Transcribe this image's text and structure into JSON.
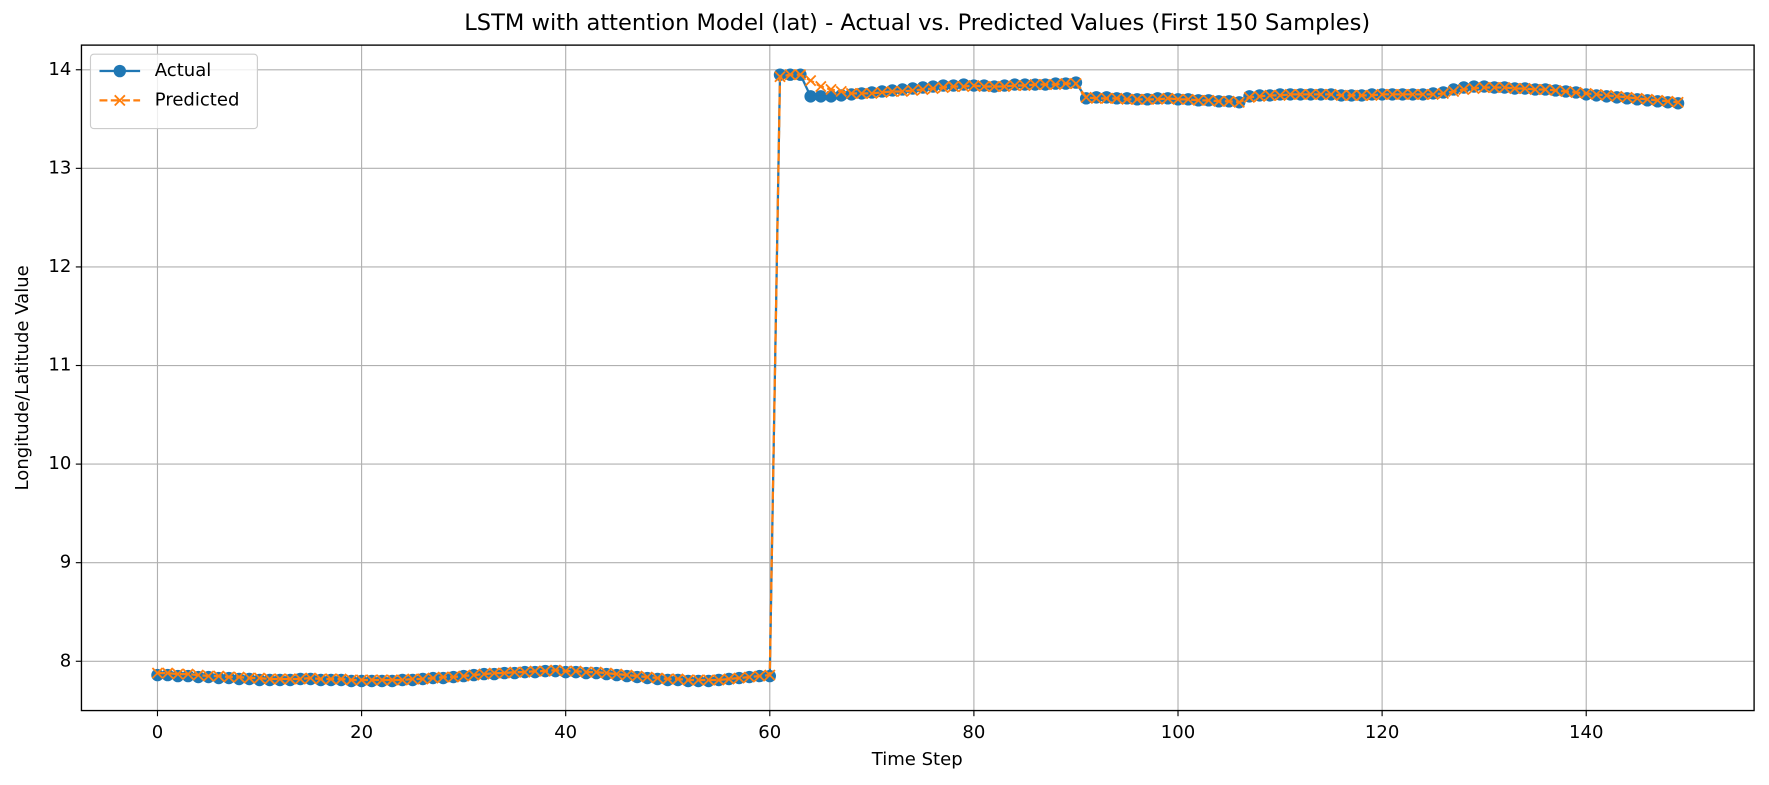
{
  "chart_data": {
    "type": "line",
    "title": "LSTM with attention Model (lat) - Actual vs. Predicted Values (First 150 Samples)",
    "x_label": "Time Step",
    "y_label": "Longitude/Latitude Value",
    "x": [
      0,
      1,
      2,
      3,
      4,
      5,
      6,
      7,
      8,
      9,
      10,
      11,
      12,
      13,
      14,
      15,
      16,
      17,
      18,
      19,
      20,
      21,
      22,
      23,
      24,
      25,
      26,
      27,
      28,
      29,
      30,
      31,
      32,
      33,
      34,
      35,
      36,
      37,
      38,
      39,
      40,
      41,
      42,
      43,
      44,
      45,
      46,
      47,
      48,
      49,
      50,
      51,
      52,
      53,
      54,
      55,
      56,
      57,
      58,
      59,
      60,
      61,
      62,
      63,
      64,
      65,
      66,
      67,
      68,
      69,
      70,
      71,
      72,
      73,
      74,
      75,
      76,
      77,
      78,
      79,
      80,
      81,
      82,
      83,
      84,
      85,
      86,
      87,
      88,
      89,
      90,
      91,
      92,
      93,
      94,
      95,
      96,
      97,
      98,
      99,
      100,
      101,
      102,
      103,
      104,
      105,
      106,
      107,
      108,
      109,
      110,
      111,
      112,
      113,
      114,
      115,
      116,
      117,
      118,
      119,
      120,
      121,
      122,
      123,
      124,
      125,
      126,
      127,
      128,
      129,
      130,
      131,
      132,
      133,
      134,
      135,
      136,
      137,
      138,
      139,
      140,
      141,
      142,
      143,
      144,
      145,
      146,
      147,
      148,
      149
    ],
    "series": [
      {
        "name": "Actual",
        "color": "#1f77b4",
        "marker": "o",
        "linestyle": "solid",
        "values": [
          7.86,
          7.86,
          7.85,
          7.85,
          7.84,
          7.84,
          7.83,
          7.83,
          7.82,
          7.82,
          7.81,
          7.81,
          7.81,
          7.81,
          7.82,
          7.82,
          7.81,
          7.81,
          7.81,
          7.8,
          7.8,
          7.8,
          7.8,
          7.8,
          7.81,
          7.81,
          7.82,
          7.83,
          7.83,
          7.84,
          7.85,
          7.86,
          7.87,
          7.87,
          7.88,
          7.88,
          7.89,
          7.89,
          7.9,
          7.9,
          7.89,
          7.89,
          7.88,
          7.88,
          7.87,
          7.86,
          7.85,
          7.84,
          7.83,
          7.82,
          7.81,
          7.81,
          7.8,
          7.8,
          7.8,
          7.81,
          7.82,
          7.83,
          7.84,
          7.85,
          7.85,
          13.95,
          13.95,
          13.95,
          13.73,
          13.73,
          13.73,
          13.74,
          13.75,
          13.76,
          13.77,
          13.78,
          13.79,
          13.8,
          13.81,
          13.82,
          13.83,
          13.84,
          13.84,
          13.85,
          13.84,
          13.84,
          13.83,
          13.84,
          13.85,
          13.85,
          13.85,
          13.85,
          13.86,
          13.86,
          13.87,
          13.71,
          13.72,
          13.72,
          13.71,
          13.71,
          13.7,
          13.7,
          13.71,
          13.71,
          13.7,
          13.7,
          13.69,
          13.69,
          13.68,
          13.68,
          13.67,
          13.73,
          13.74,
          13.74,
          13.75,
          13.75,
          13.75,
          13.75,
          13.75,
          13.75,
          13.74,
          13.74,
          13.74,
          13.75,
          13.75,
          13.75,
          13.75,
          13.75,
          13.75,
          13.76,
          13.77,
          13.8,
          13.82,
          13.83,
          13.83,
          13.82,
          13.82,
          13.81,
          13.81,
          13.8,
          13.8,
          13.79,
          13.78,
          13.77,
          13.75,
          13.74,
          13.73,
          13.72,
          13.71,
          13.7,
          13.69,
          13.68,
          13.67,
          13.66
        ]
      },
      {
        "name": "Predicted",
        "color": "#ff7f0e",
        "marker": "x",
        "linestyle": "dashed",
        "values": [
          7.88,
          7.88,
          7.87,
          7.87,
          7.86,
          7.85,
          7.85,
          7.84,
          7.84,
          7.83,
          7.83,
          7.82,
          7.82,
          7.82,
          7.82,
          7.83,
          7.82,
          7.82,
          7.82,
          7.81,
          7.81,
          7.81,
          7.81,
          7.81,
          7.81,
          7.82,
          7.82,
          7.83,
          7.84,
          7.84,
          7.85,
          7.86,
          7.87,
          7.88,
          7.88,
          7.89,
          7.89,
          7.9,
          7.9,
          7.91,
          7.9,
          7.9,
          7.89,
          7.89,
          7.88,
          7.87,
          7.86,
          7.85,
          7.84,
          7.83,
          7.82,
          7.82,
          7.81,
          7.81,
          7.81,
          7.81,
          7.82,
          7.83,
          7.84,
          7.85,
          7.86,
          13.93,
          13.95,
          13.95,
          13.89,
          13.83,
          13.8,
          13.78,
          13.76,
          13.76,
          13.76,
          13.77,
          13.78,
          13.78,
          13.79,
          13.8,
          13.81,
          13.82,
          13.83,
          13.83,
          13.84,
          13.83,
          13.83,
          13.83,
          13.84,
          13.84,
          13.85,
          13.85,
          13.85,
          13.86,
          13.86,
          13.72,
          13.71,
          13.71,
          13.71,
          13.7,
          13.7,
          13.7,
          13.7,
          13.71,
          13.7,
          13.7,
          13.69,
          13.69,
          13.68,
          13.68,
          13.67,
          13.72,
          13.73,
          13.74,
          13.74,
          13.75,
          13.75,
          13.75,
          13.75,
          13.75,
          13.74,
          13.74,
          13.74,
          13.74,
          13.75,
          13.75,
          13.75,
          13.75,
          13.75,
          13.75,
          13.76,
          13.78,
          13.8,
          13.81,
          13.82,
          13.82,
          13.82,
          13.81,
          13.81,
          13.8,
          13.8,
          13.79,
          13.78,
          13.77,
          13.76,
          13.75,
          13.74,
          13.73,
          13.72,
          13.71,
          13.7,
          13.69,
          13.68,
          13.67
        ]
      }
    ],
    "xlim": [
      -7.45,
      156.45
    ],
    "xticks": [
      0,
      20,
      40,
      60,
      80,
      100,
      120,
      140
    ],
    "ylim": [
      7.5,
      14.25
    ],
    "yticks": [
      8,
      9,
      10,
      11,
      12,
      13,
      14
    ],
    "grid": true,
    "legend": "upper left"
  }
}
